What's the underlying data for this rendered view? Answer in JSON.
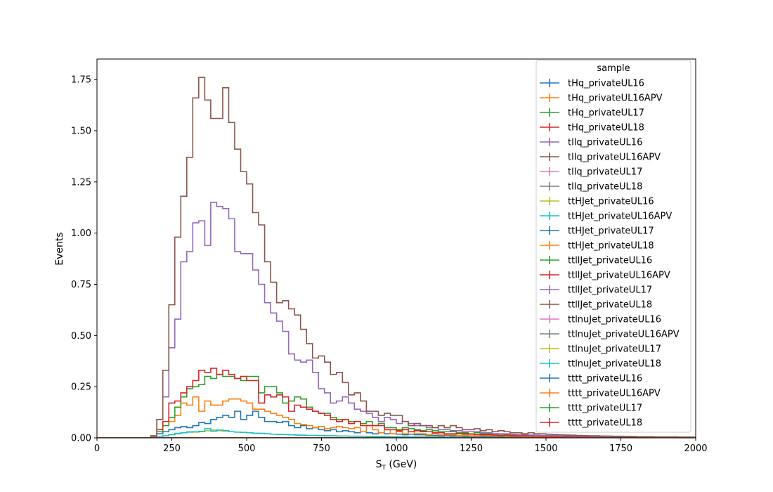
{
  "chart_data": {
    "type": "step",
    "xlabel_main": "S",
    "xlabel_sub": "T",
    "xlabel_rest": " (GeV)",
    "ylabel": "Events",
    "xlim": [
      0,
      2000
    ],
    "ylim": [
      0,
      1.85
    ],
    "xticks": [
      0,
      250,
      500,
      750,
      1000,
      1250,
      1500,
      1750,
      2000
    ],
    "xtick_labels": [
      "0",
      "250",
      "500",
      "750",
      "1000",
      "1250",
      "1500",
      "1750",
      "2000"
    ],
    "yticks": [
      0.0,
      0.25,
      0.5,
      0.75,
      1.0,
      1.25,
      1.5,
      1.75
    ],
    "ytick_labels": [
      "0.00",
      "0.25",
      "0.50",
      "0.75",
      "1.00",
      "1.25",
      "1.50",
      "1.75"
    ],
    "legend_title": "sample",
    "legend_position": "top-right",
    "bin_edges_start": 0,
    "bin_width": 20,
    "series": [
      {
        "name": "tHq_privateUL16",
        "color": "#1f77b4",
        "values": []
      },
      {
        "name": "tHq_privateUL16APV",
        "color": "#ff7f0e",
        "values": []
      },
      {
        "name": "tHq_privateUL17",
        "color": "#2ca02c",
        "values": []
      },
      {
        "name": "tHq_privateUL18",
        "color": "#d62728",
        "values": []
      },
      {
        "name": "tllq_privateUL16",
        "color": "#9467bd",
        "values": []
      },
      {
        "name": "tllq_privateUL16APV",
        "color": "#8c564b",
        "values": []
      },
      {
        "name": "tllq_privateUL17",
        "color": "#e377c2",
        "values": []
      },
      {
        "name": "tllq_privateUL18",
        "color": "#7f7f7f",
        "values": []
      },
      {
        "name": "ttHJet_privateUL16",
        "color": "#bcbd22",
        "values": [
          0,
          0,
          0,
          0,
          0,
          0,
          0,
          0,
          0,
          0,
          0.005,
          0.01,
          0.015,
          0.02,
          0.025,
          0.03,
          0.028,
          0.03,
          0.035,
          0.038,
          0.035,
          0.033,
          0.03,
          0.028,
          0.027,
          0.025,
          0.023,
          0.022,
          0.02,
          0.018,
          0.017,
          0.016,
          0.015,
          0.014,
          0.013,
          0.012,
          0.012,
          0.011,
          0.01,
          0.01,
          0.009,
          0.009,
          0.008,
          0.008,
          0.008,
          0.007,
          0.007,
          0.007,
          0.006,
          0.006,
          0.006,
          0.006,
          0.005,
          0.005,
          0.005,
          0.005,
          0.005,
          0.004,
          0.004,
          0.004,
          0.004,
          0.004,
          0.004,
          0.003,
          0.003,
          0.003,
          0.003,
          0.003,
          0.003,
          0.003,
          0.003,
          0.003,
          0.002,
          0.002,
          0.002,
          0.002,
          0.002,
          0.002,
          0.002,
          0.002,
          0.002,
          0.002,
          0.002,
          0.002,
          0.002,
          0.002,
          0.002,
          0.002,
          0.002,
          0.002,
          0.002,
          0.002,
          0.002,
          0.002,
          0.002,
          0.002,
          0.002,
          0.002,
          0.002,
          0.002
        ]
      },
      {
        "name": "ttHJet_privateUL16APV",
        "color": "#17becf",
        "values": [
          0,
          0,
          0,
          0,
          0,
          0,
          0,
          0,
          0,
          0,
          0.005,
          0.01,
          0.016,
          0.022,
          0.025,
          0.028,
          0.03,
          0.032,
          0.045,
          0.033,
          0.038,
          0.036,
          0.03,
          0.028,
          0.027,
          0.025,
          0.023,
          0.022,
          0.02,
          0.018,
          0.017,
          0.016,
          0.015,
          0.014,
          0.013,
          0.012,
          0.012,
          0.011,
          0.01,
          0.01,
          0.009,
          0.009,
          0.008,
          0.008,
          0.008,
          0.007,
          0.007,
          0.007,
          0.006,
          0.006,
          0.006,
          0.006,
          0.005,
          0.005,
          0.005,
          0.005,
          0.005,
          0.004,
          0.004,
          0.004,
          0.004,
          0.004,
          0.004,
          0.003,
          0.003,
          0.003,
          0.003,
          0.003,
          0.003,
          0.003,
          0.003,
          0.003,
          0.002,
          0.002,
          0.002,
          0.002,
          0.002,
          0.002,
          0.002,
          0.002,
          0.002,
          0.002,
          0.002,
          0.002,
          0.002,
          0.002,
          0.002,
          0.002,
          0.002,
          0.002,
          0.002,
          0.002,
          0.002,
          0.002,
          0.002,
          0.002,
          0.002,
          0.002,
          0.002,
          0.002
        ]
      },
      {
        "name": "ttHJet_privateUL17",
        "color": "#1f77b4",
        "values": [
          0,
          0,
          0,
          0,
          0,
          0,
          0,
          0,
          0,
          0.005,
          0.02,
          0.03,
          0.04,
          0.05,
          0.055,
          0.05,
          0.06,
          0.075,
          0.07,
          0.09,
          0.1,
          0.11,
          0.1,
          0.13,
          0.09,
          0.11,
          0.13,
          0.1,
          0.08,
          0.08,
          0.075,
          0.08,
          0.06,
          0.05,
          0.06,
          0.045,
          0.05,
          0.04,
          0.035,
          0.04,
          0.03,
          0.035,
          0.03,
          0.025,
          0.03,
          0.025,
          0.02,
          0.025,
          0.02,
          0.02,
          0.018,
          0.015,
          0.018,
          0.015,
          0.015,
          0.012,
          0.012,
          0.01,
          0.012,
          0.01,
          0.01,
          0.009,
          0.008,
          0.008,
          0.008,
          0.007,
          0.007,
          0.006,
          0.006,
          0.006,
          0.005,
          0.005,
          0.005,
          0.005,
          0.004,
          0.004,
          0.004,
          0.004,
          0.004,
          0.003,
          0.003,
          0.003,
          0.003,
          0.003,
          0.003,
          0.003,
          0.003,
          0.003,
          0.003,
          0.002,
          0.002,
          0.002,
          0.002,
          0.002,
          0.002,
          0.002,
          0.002,
          0.002,
          0.002,
          0.002
        ]
      },
      {
        "name": "ttHJet_privateUL18",
        "color": "#ff7f0e",
        "values": [
          0,
          0,
          0,
          0,
          0,
          0,
          0,
          0,
          0,
          0.01,
          0.03,
          0.06,
          0.08,
          0.11,
          0.17,
          0.16,
          0.2,
          0.13,
          0.18,
          0.16,
          0.16,
          0.18,
          0.19,
          0.19,
          0.18,
          0.17,
          0.14,
          0.14,
          0.13,
          0.12,
          0.11,
          0.1,
          0.09,
          0.07,
          0.065,
          0.06,
          0.05,
          0.055,
          0.045,
          0.05,
          0.055,
          0.05,
          0.045,
          0.05,
          0.03,
          0.06,
          0.04,
          0.025,
          0.04,
          0.02,
          0.03,
          0.02,
          0.03,
          0.02,
          0.02,
          0.015,
          0.02,
          0.015,
          0.015,
          0.015,
          0.01,
          0.015,
          0.01,
          0.01,
          0.012,
          0.01,
          0.01,
          0.01,
          0.008,
          0.008,
          0.008,
          0.007,
          0.007,
          0.006,
          0.006,
          0.006,
          0.006,
          0.005,
          0.005,
          0.005,
          0.005,
          0.005,
          0.004,
          0.004,
          0.004,
          0.004,
          0.004,
          0.004,
          0.003,
          0.003,
          0.003,
          0.003,
          0.003,
          0.003,
          0.003,
          0.003,
          0.003,
          0.003,
          0.003,
          0.003
        ]
      },
      {
        "name": "ttllJet_privateUL16",
        "color": "#2ca02c",
        "values": [
          0,
          0,
          0,
          0,
          0,
          0,
          0,
          0,
          0,
          0.005,
          0.03,
          0.06,
          0.1,
          0.15,
          0.2,
          0.24,
          0.25,
          0.26,
          0.3,
          0.29,
          0.31,
          0.3,
          0.3,
          0.29,
          0.28,
          0.3,
          0.3,
          0.22,
          0.25,
          0.25,
          0.22,
          0.17,
          0.18,
          0.2,
          0.19,
          0.15,
          0.13,
          0.12,
          0.12,
          0.1,
          0.09,
          0.09,
          0.08,
          0.08,
          0.07,
          0.08,
          0.06,
          0.07,
          0.05,
          0.05,
          0.04,
          0.05,
          0.045,
          0.04,
          0.035,
          0.04,
          0.035,
          0.03,
          0.03,
          0.03,
          0.025,
          0.025,
          0.02,
          0.025,
          0.02,
          0.02,
          0.02,
          0.018,
          0.016,
          0.015,
          0.015,
          0.014,
          0.013,
          0.012,
          0.011,
          0.01,
          0.01,
          0.009,
          0.009,
          0.008,
          0.008,
          0.007,
          0.007,
          0.006,
          0.006,
          0.006,
          0.005,
          0.005,
          0.005,
          0.005,
          0.004,
          0.004,
          0.004,
          0.004,
          0.004,
          0.003,
          0.003,
          0.003,
          0.003,
          0.003
        ]
      },
      {
        "name": "ttllJet_privateUL16APV",
        "color": "#d62728",
        "values": [
          0,
          0,
          0,
          0,
          0,
          0,
          0,
          0,
          0,
          0.005,
          0.04,
          0.08,
          0.17,
          0.18,
          0.22,
          0.25,
          0.28,
          0.33,
          0.32,
          0.34,
          0.31,
          0.33,
          0.31,
          0.29,
          0.3,
          0.28,
          0.28,
          0.17,
          0.21,
          0.2,
          0.21,
          0.2,
          0.13,
          0.16,
          0.15,
          0.14,
          0.13,
          0.12,
          0.11,
          0.09,
          0.08,
          0.09,
          0.07,
          0.08,
          0.06,
          0.06,
          0.06,
          0.06,
          0.04,
          0.04,
          0.035,
          0.04,
          0.03,
          0.035,
          0.03,
          0.03,
          0.025,
          0.025,
          0.02,
          0.02,
          0.02,
          0.02,
          0.018,
          0.016,
          0.015,
          0.015,
          0.014,
          0.012,
          0.012,
          0.011,
          0.01,
          0.01,
          0.009,
          0.009,
          0.008,
          0.008,
          0.007,
          0.007,
          0.006,
          0.006,
          0.006,
          0.005,
          0.005,
          0.005,
          0.005,
          0.004,
          0.004,
          0.004,
          0.004,
          0.004,
          0.003,
          0.003,
          0.003,
          0.003,
          0.003,
          0.003,
          0.003,
          0.003,
          0.002,
          0.002
        ]
      },
      {
        "name": "ttllJet_privateUL17",
        "color": "#9467bd",
        "values": [
          0,
          0,
          0,
          0,
          0,
          0,
          0,
          0,
          0,
          0.005,
          0.09,
          0.2,
          0.44,
          0.58,
          0.86,
          0.91,
          1.05,
          1.06,
          0.94,
          1.15,
          1.13,
          1.12,
          1.07,
          0.91,
          0.9,
          0.9,
          0.82,
          0.75,
          0.66,
          0.61,
          0.57,
          0.52,
          0.41,
          0.38,
          0.37,
          0.38,
          0.32,
          0.24,
          0.22,
          0.17,
          0.18,
          0.2,
          0.17,
          0.14,
          0.13,
          0.12,
          0.1,
          0.08,
          0.1,
          0.09,
          0.07,
          0.08,
          0.07,
          0.06,
          0.06,
          0.05,
          0.05,
          0.04,
          0.04,
          0.035,
          0.035,
          0.03,
          0.03,
          0.03,
          0.025,
          0.025,
          0.02,
          0.02,
          0.02,
          0.018,
          0.016,
          0.015,
          0.014,
          0.013,
          0.012,
          0.012,
          0.011,
          0.01,
          0.01,
          0.009,
          0.009,
          0.008,
          0.008,
          0.007,
          0.007,
          0.006,
          0.006,
          0.006,
          0.005,
          0.005,
          0.005,
          0.005,
          0.004,
          0.004,
          0.004,
          0.004,
          0.004,
          0.003,
          0.003,
          0.003
        ]
      },
      {
        "name": "ttllJet_privateUL18",
        "color": "#8c564b",
        "values": [
          0,
          0,
          0,
          0,
          0,
          0,
          0,
          0,
          0,
          0.01,
          0.09,
          0.33,
          0.65,
          0.98,
          1.18,
          1.37,
          1.66,
          1.76,
          1.65,
          1.56,
          1.56,
          1.71,
          1.54,
          1.41,
          1.3,
          1.24,
          1.1,
          1.04,
          0.86,
          0.76,
          0.66,
          0.67,
          0.63,
          0.6,
          0.53,
          0.46,
          0.39,
          0.4,
          0.37,
          0.31,
          0.32,
          0.27,
          0.21,
          0.22,
          0.18,
          0.13,
          0.13,
          0.11,
          0.12,
          0.11,
          0.11,
          0.08,
          0.06,
          0.07,
          0.06,
          0.06,
          0.05,
          0.06,
          0.05,
          0.06,
          0.05,
          0.04,
          0.04,
          0.045,
          0.035,
          0.04,
          0.03,
          0.035,
          0.03,
          0.025,
          0.025,
          0.02,
          0.025,
          0.02,
          0.02,
          0.018,
          0.016,
          0.015,
          0.014,
          0.013,
          0.012,
          0.011,
          0.01,
          0.01,
          0.009,
          0.009,
          0.008,
          0.008,
          0.007,
          0.007,
          0.006,
          0.006,
          0.006,
          0.005,
          0.005,
          0.005,
          0.005,
          0.004,
          0.004,
          0.004
        ]
      },
      {
        "name": "ttlnuJet_privateUL16",
        "color": "#e377c2",
        "values": []
      },
      {
        "name": "ttlnuJet_privateUL16APV",
        "color": "#7f7f7f",
        "values": []
      },
      {
        "name": "ttlnuJet_privateUL17",
        "color": "#bcbd22",
        "values": []
      },
      {
        "name": "ttlnuJet_privateUL18",
        "color": "#17becf",
        "values": []
      },
      {
        "name": "tttt_privateUL16",
        "color": "#1f77b4",
        "values": []
      },
      {
        "name": "tttt_privateUL16APV",
        "color": "#ff7f0e",
        "values": []
      },
      {
        "name": "tttt_privateUL17",
        "color": "#2ca02c",
        "values": []
      },
      {
        "name": "tttt_privateUL18",
        "color": "#d62728",
        "values": []
      }
    ]
  }
}
